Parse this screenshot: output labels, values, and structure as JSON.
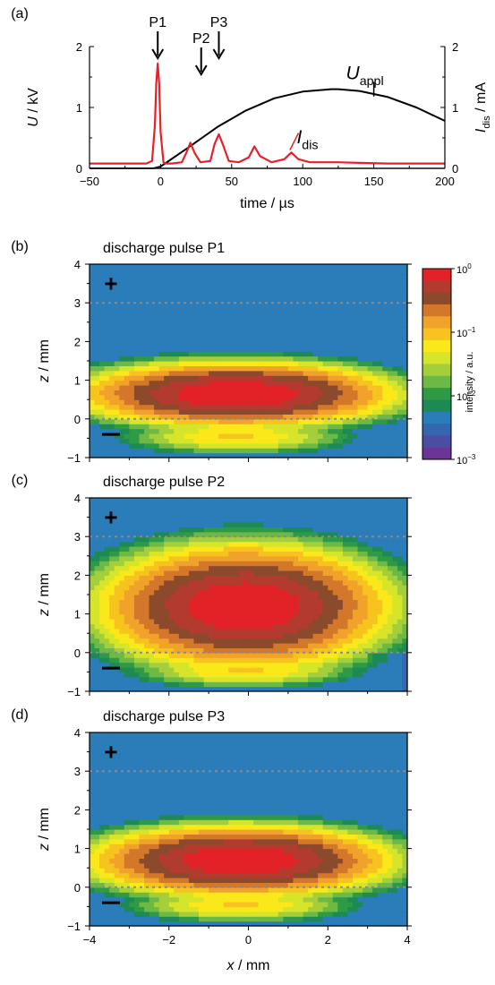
{
  "chart_data": [
    {
      "panel": "(a)",
      "type": "line",
      "xlabel": "time / µs",
      "ylabel_left": "U / kV",
      "ylabel_right": "I_dis / mA",
      "xlim": [
        -50,
        200
      ],
      "ylim_left": [
        0,
        2
      ],
      "ylim_right": [
        0,
        2
      ],
      "x_ticks": [
        "-50",
        "0",
        "50",
        "100",
        "150",
        "200"
      ],
      "y_ticks_left": [
        "0",
        "1",
        "2"
      ],
      "y_ticks_right": [
        "0",
        "1",
        "2"
      ],
      "pulse_markers": [
        {
          "label": "P1",
          "x": -2
        },
        {
          "label": "P2",
          "x": 21
        },
        {
          "label": "P3",
          "x": 41
        }
      ],
      "series": [
        {
          "name": "U_appl",
          "color": "#000000",
          "x": [
            -50,
            -5,
            0,
            20,
            40,
            60,
            80,
            100,
            120,
            125,
            140,
            160,
            180,
            200
          ],
          "values": [
            0,
            0,
            0.03,
            0.35,
            0.68,
            0.95,
            1.15,
            1.26,
            1.3,
            1.3,
            1.27,
            1.17,
            1.0,
            0.78
          ]
        },
        {
          "name": "I_dis",
          "color": "#e8202a",
          "x": [
            -50,
            -10,
            -6,
            -4,
            -3,
            -2,
            -1,
            0,
            2,
            4,
            8,
            15,
            18,
            21,
            24,
            28,
            35,
            38,
            41,
            44,
            48,
            55,
            62,
            66,
            70,
            78,
            87,
            92,
            97,
            105,
            112,
            125,
            140,
            160,
            180,
            200
          ],
          "values": [
            0.08,
            0.08,
            0.12,
            0.7,
            1.4,
            1.72,
            1.4,
            0.6,
            0.1,
            0.08,
            0.08,
            0.1,
            0.25,
            0.42,
            0.25,
            0.1,
            0.12,
            0.4,
            0.56,
            0.38,
            0.12,
            0.1,
            0.18,
            0.36,
            0.2,
            0.1,
            0.15,
            0.26,
            0.15,
            0.1,
            0.1,
            0.1,
            0.09,
            0.08,
            0.08,
            0.08
          ]
        },
        {
          "name": "baseline",
          "color": "#8a8a8a",
          "x": [
            -50,
            200
          ],
          "values": [
            0,
            0
          ]
        }
      ],
      "annotations": [
        {
          "label": "U",
          "subscript": "appl",
          "x": 150,
          "y": 1.58
        },
        {
          "label": "I",
          "subscript": "dis",
          "x": 92,
          "y": 0.5
        }
      ]
    },
    {
      "panel": "(b)",
      "type": "heatmap",
      "title": "discharge pulse P1",
      "xlabel": "",
      "ylabel": "z / mm",
      "xlim": [
        -4,
        4
      ],
      "ylim": [
        -1,
        4
      ],
      "y_ticks": [
        "-1",
        "0",
        "1",
        "2",
        "3",
        "4"
      ],
      "dashed_lines_z": [
        0,
        3
      ],
      "electrode_labels": {
        "top": "+",
        "bottom": "−"
      },
      "emission_center": {
        "x": -0.3,
        "z": 0.65
      }
    },
    {
      "panel": "(c)",
      "type": "heatmap",
      "title": "discharge pulse P2",
      "xlabel": "",
      "ylabel": "z / mm",
      "xlim": [
        -4,
        4
      ],
      "ylim": [
        -1,
        4
      ],
      "y_ticks": [
        "-1",
        "0",
        "1",
        "2",
        "3",
        "4"
      ],
      "dashed_lines_z": [
        0,
        3
      ],
      "electrode_labels": {
        "top": "+",
        "bottom": "−"
      },
      "emission_center": {
        "x": -0.1,
        "z": 1.2
      }
    },
    {
      "panel": "(d)",
      "type": "heatmap",
      "title": "discharge pulse P3",
      "xlabel": "x / mm",
      "ylabel": "z / mm",
      "xlim": [
        -4,
        4
      ],
      "ylim": [
        -1,
        4
      ],
      "x_ticks": [
        "-4",
        "-2",
        "0",
        "2",
        "4"
      ],
      "y_ticks": [
        "-1",
        "0",
        "1",
        "2",
        "3",
        "4"
      ],
      "dashed_lines_z": [
        0,
        3
      ],
      "electrode_labels": {
        "top": "+",
        "bottom": "−"
      },
      "emission_center": {
        "x": -0.2,
        "z": 0.7
      }
    }
  ],
  "colorbar": {
    "label": "intensity / a.u.",
    "scale": "log",
    "range": [
      0.001,
      1
    ],
    "tick_labels": [
      "10^0",
      "10^-1",
      "10^-2",
      "10^-3"
    ],
    "colors": [
      "#e32228",
      "#b23a2e",
      "#8b4a2c",
      "#d3772a",
      "#f0a22b",
      "#f6c31f",
      "#fbe81a",
      "#d6e42a",
      "#a5cf3a",
      "#6db946",
      "#2e9a45",
      "#1d8a55",
      "#2a7db8",
      "#3566b0",
      "#4b4da2",
      "#6a3596"
    ]
  }
}
